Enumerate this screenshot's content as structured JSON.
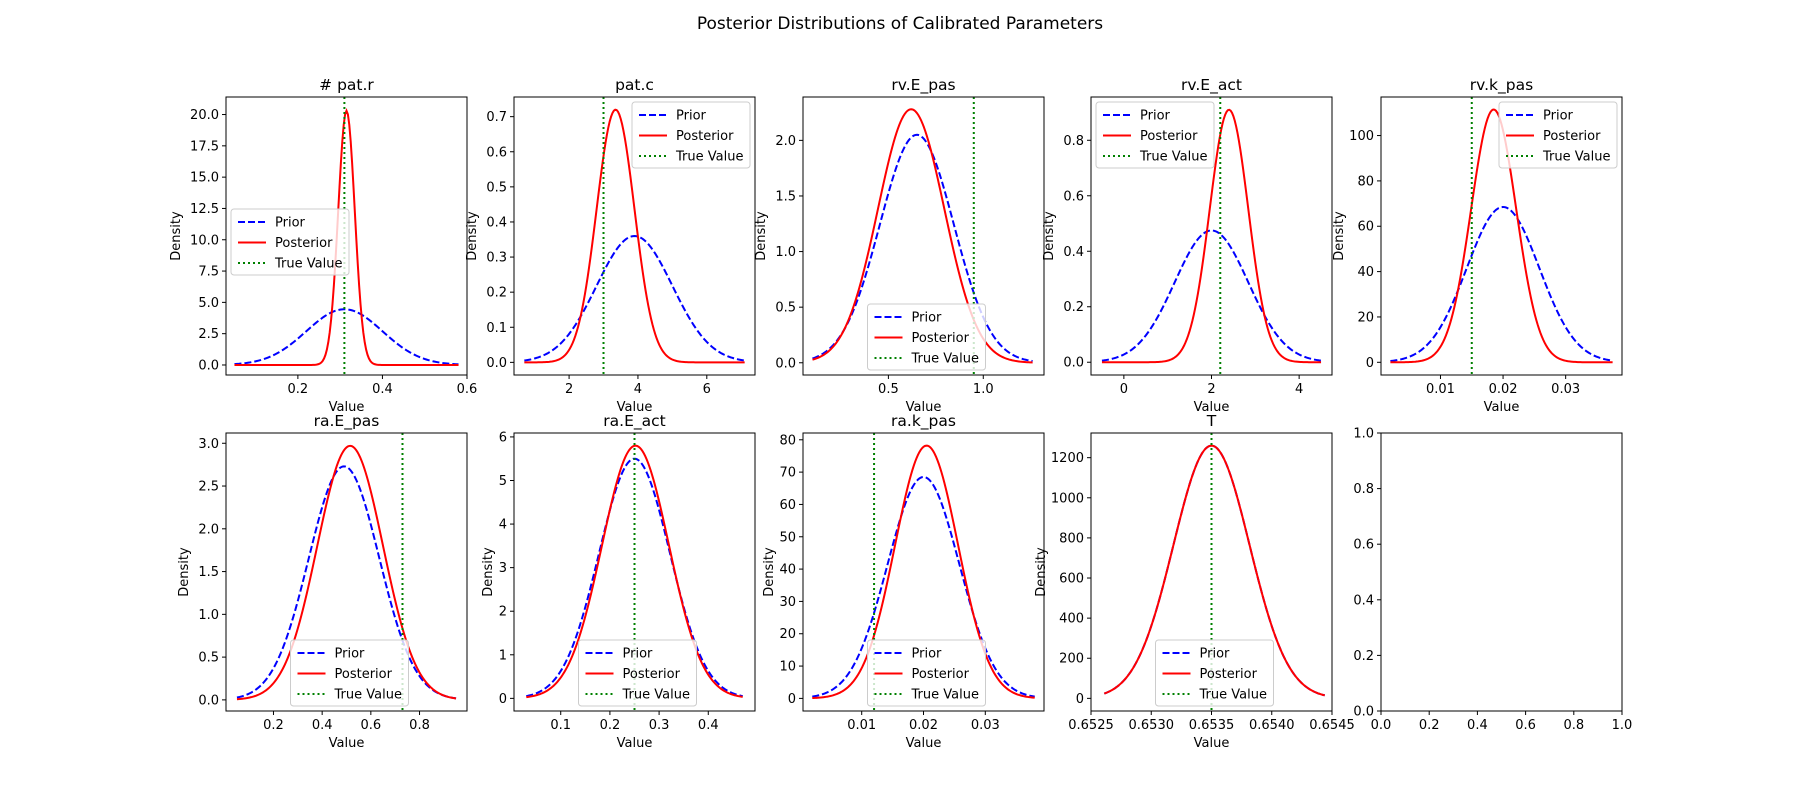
{
  "figure": {
    "suptitle": "Posterior Distributions of Calibrated Parameters"
  },
  "legend_labels": {
    "prior": "Prior",
    "posterior": "Posterior",
    "true": "True Value"
  },
  "colors": {
    "prior": "#0000ff",
    "posterior": "#ff0000",
    "true": "#008000"
  },
  "chart_data": [
    {
      "type": "line",
      "title": "# pat.r",
      "xlabel": "Value",
      "ylabel": "Density",
      "xlim": [
        0.03,
        0.6
      ],
      "ylim": [
        -0.8,
        21.4
      ],
      "xticks": [
        "0.2",
        "0.4",
        "0.6"
      ],
      "xtick_values": [
        0.2,
        0.4,
        0.6
      ],
      "yticks": [
        "0.0",
        "2.5",
        "5.0",
        "7.5",
        "10.0",
        "12.5",
        "15.0",
        "17.5",
        "20.0"
      ],
      "ytick_values": [
        0,
        2.5,
        5,
        7.5,
        10,
        12.5,
        15,
        17.5,
        20
      ],
      "prior": {
        "mean": 0.31,
        "sd": 0.09,
        "peak": 4.45,
        "range": [
          0.05,
          0.58
        ]
      },
      "posterior": {
        "mean": 0.315,
        "sd": 0.0196,
        "peak": 20.3,
        "range": [
          0.05,
          0.58
        ]
      },
      "true_value": 0.31,
      "legend": "center-left"
    },
    {
      "type": "line",
      "title": "pat.c",
      "xlabel": "Value",
      "ylabel": "Density",
      "xlim": [
        0.4,
        7.4
      ],
      "ylim": [
        -0.036,
        0.756
      ],
      "xticks": [
        "2",
        "4",
        "6"
      ],
      "xtick_values": [
        2,
        4,
        6
      ],
      "yticks": [
        "0.0",
        "0.1",
        "0.2",
        "0.3",
        "0.4",
        "0.5",
        "0.6",
        "0.7"
      ],
      "ytick_values": [
        0,
        0.1,
        0.2,
        0.3,
        0.4,
        0.5,
        0.6,
        0.7
      ],
      "prior": {
        "mean": 3.9,
        "sd": 1.1,
        "peak": 0.36,
        "range": [
          0.7,
          7.1
        ]
      },
      "posterior": {
        "mean": 3.35,
        "sd": 0.55,
        "peak": 0.72,
        "range": [
          0.7,
          7.1
        ]
      },
      "true_value": 3.0,
      "legend": "top-right"
    },
    {
      "type": "line",
      "title": "rv.E_pas",
      "xlabel": "Value",
      "ylabel": "Density",
      "xlim": [
        0.05,
        1.32
      ],
      "ylim": [
        -0.11,
        2.39
      ],
      "xticks": [
        "0.5",
        "1.0"
      ],
      "xtick_values": [
        0.5,
        1.0
      ],
      "yticks": [
        "0.0",
        "0.5",
        "1.0",
        "1.5",
        "2.0"
      ],
      "ytick_values": [
        0,
        0.5,
        1,
        1.5,
        2
      ],
      "prior": {
        "mean": 0.65,
        "sd": 0.195,
        "peak": 2.05,
        "range": [
          0.1,
          1.26
        ]
      },
      "posterior": {
        "mean": 0.62,
        "sd": 0.175,
        "peak": 2.28,
        "range": [
          0.1,
          1.26
        ]
      },
      "true_value": 0.95,
      "legend": "bottom-center"
    },
    {
      "type": "line",
      "title": "rv.E_act",
      "xlabel": "Value",
      "ylabel": "Density",
      "xlim": [
        -0.75,
        4.75
      ],
      "ylim": [
        -0.046,
        0.956
      ],
      "xticks": [
        "0",
        "2",
        "4"
      ],
      "xtick_values": [
        0,
        2,
        4
      ],
      "yticks": [
        "0.0",
        "0.2",
        "0.4",
        "0.6",
        "0.8"
      ],
      "ytick_values": [
        0,
        0.2,
        0.4,
        0.6,
        0.8
      ],
      "prior": {
        "mean": 2.0,
        "sd": 0.84,
        "peak": 0.475,
        "range": [
          -0.5,
          4.5
        ]
      },
      "posterior": {
        "mean": 2.4,
        "sd": 0.44,
        "peak": 0.91,
        "range": [
          -0.5,
          4.5
        ]
      },
      "true_value": 2.2,
      "legend": "top-left"
    },
    {
      "type": "line",
      "title": "rv.k_pas",
      "xlabel": "Value",
      "ylabel": "Density",
      "xlim": [
        0.0005,
        0.039
      ],
      "ylim": [
        -5.6,
        117
      ],
      "xticks": [
        "0.01",
        "0.02",
        "0.03"
      ],
      "xtick_values": [
        0.01,
        0.02,
        0.03
      ],
      "yticks": [
        "0",
        "20",
        "40",
        "60",
        "80",
        "100"
      ],
      "ytick_values": [
        0,
        20,
        40,
        60,
        80,
        100
      ],
      "prior": {
        "mean": 0.02,
        "sd": 0.0058,
        "peak": 68.5,
        "range": [
          0.002,
          0.0375
        ]
      },
      "posterior": {
        "mean": 0.0185,
        "sd": 0.0036,
        "peak": 111.5,
        "range": [
          0.002,
          0.0375
        ]
      },
      "true_value": 0.015,
      "legend": "top-right"
    },
    {
      "type": "line",
      "title": "ra.E_pas",
      "xlabel": "Value",
      "ylabel": "Density",
      "xlim": [
        0.005,
        0.995
      ],
      "ylim": [
        -0.13,
        3.12
      ],
      "xticks": [
        "0.2",
        "0.4",
        "0.6",
        "0.8"
      ],
      "xtick_values": [
        0.2,
        0.4,
        0.6,
        0.8
      ],
      "yticks": [
        "0.0",
        "0.5",
        "1.0",
        "1.5",
        "2.0",
        "2.5",
        "3.0"
      ],
      "ytick_values": [
        0,
        0.5,
        1,
        1.5,
        2,
        2.5,
        3
      ],
      "prior": {
        "mean": 0.49,
        "sd": 0.145,
        "peak": 2.73,
        "range": [
          0.05,
          0.95
        ]
      },
      "posterior": {
        "mean": 0.515,
        "sd": 0.135,
        "peak": 2.97,
        "range": [
          0.05,
          0.95
        ]
      },
      "true_value": 0.73,
      "legend": "bottom-center"
    },
    {
      "type": "line",
      "title": "ra.E_act",
      "xlabel": "Value",
      "ylabel": "Density",
      "xlim": [
        0.005,
        0.495
      ],
      "ylim": [
        -0.29,
        6.09
      ],
      "xticks": [
        "0.1",
        "0.2",
        "0.3",
        "0.4"
      ],
      "xtick_values": [
        0.1,
        0.2,
        0.3,
        0.4
      ],
      "yticks": [
        "0",
        "1",
        "2",
        "3",
        "4",
        "5",
        "6"
      ],
      "ytick_values": [
        0,
        1,
        2,
        3,
        4,
        5,
        6
      ],
      "prior": {
        "mean": 0.25,
        "sd": 0.072,
        "peak": 5.5,
        "range": [
          0.03,
          0.47
        ]
      },
      "posterior": {
        "mean": 0.252,
        "sd": 0.068,
        "peak": 5.8,
        "range": [
          0.03,
          0.47
        ]
      },
      "true_value": 0.25,
      "legend": "bottom-center"
    },
    {
      "type": "line",
      "title": "ra.k_pas",
      "xlabel": "Value",
      "ylabel": "Density",
      "xlim": [
        0.0005,
        0.0395
      ],
      "ylim": [
        -3.9,
        82.1
      ],
      "xticks": [
        "0.01",
        "0.02",
        "0.03"
      ],
      "xtick_values": [
        0.01,
        0.02,
        0.03
      ],
      "yticks": [
        "0",
        "10",
        "20",
        "30",
        "40",
        "50",
        "60",
        "70",
        "80"
      ],
      "ytick_values": [
        0,
        10,
        20,
        30,
        40,
        50,
        60,
        70,
        80
      ],
      "prior": {
        "mean": 0.02,
        "sd": 0.0058,
        "peak": 68.5,
        "range": [
          0.002,
          0.038
        ]
      },
      "posterior": {
        "mean": 0.0205,
        "sd": 0.0051,
        "peak": 78.2,
        "range": [
          0.002,
          0.038
        ]
      },
      "true_value": 0.012,
      "legend": "bottom-center"
    },
    {
      "type": "line",
      "title": "T",
      "xlabel": "Value",
      "ylabel": "Density",
      "xlim": [
        0.6525,
        0.6545
      ],
      "ylim": [
        -63,
        1323
      ],
      "xticks": [
        "0.6525",
        "0.6530",
        "0.6535",
        "0.6540",
        "0.6545"
      ],
      "xtick_values": [
        0.6525,
        0.653,
        0.6535,
        0.654,
        0.6545
      ],
      "yticks": [
        "0",
        "200",
        "400",
        "600",
        "800",
        "1000",
        "1200"
      ],
      "ytick_values": [
        0,
        200,
        400,
        600,
        800,
        1000,
        1200
      ],
      "prior": {
        "mean": 0.6535,
        "sd": 0.000316,
        "peak": 1260,
        "range": [
          0.65261,
          0.65444
        ]
      },
      "posterior": {
        "mean": 0.6535,
        "sd": 0.000316,
        "peak": 1260,
        "range": [
          0.65261,
          0.65444
        ]
      },
      "true_value": 0.6535,
      "legend": "bottom-center"
    },
    {
      "type": "empty",
      "title": "",
      "xlabel": "",
      "ylabel": "",
      "xlim": [
        0,
        1
      ],
      "ylim": [
        0,
        1
      ],
      "xticks": [
        "0.0",
        "0.2",
        "0.4",
        "0.6",
        "0.8",
        "1.0"
      ],
      "xtick_values": [
        0,
        0.2,
        0.4,
        0.6,
        0.8,
        1.0
      ],
      "yticks": [
        "0.0",
        "0.2",
        "0.4",
        "0.6",
        "0.8",
        "1.0"
      ],
      "ytick_values": [
        0,
        0.2,
        0.4,
        0.6,
        0.8,
        1.0
      ]
    }
  ]
}
